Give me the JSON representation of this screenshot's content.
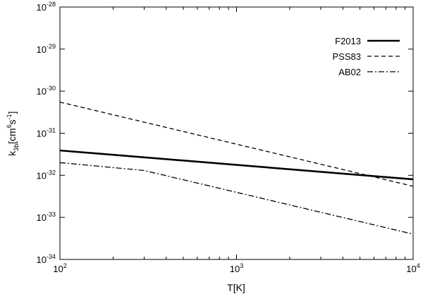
{
  "chart_data": {
    "type": "line",
    "xlabel": "T[K]",
    "ylabel_parts": {
      "base": "k",
      "sub": "3b",
      "open": "[cm",
      "sup1": "6",
      "mid": "s",
      "sup2": "-1",
      "close": "]"
    },
    "x_scale": "log",
    "y_scale": "log",
    "xlim": [
      100,
      10000
    ],
    "ylim": [
      1e-34,
      1e-28
    ],
    "x_ticks": [
      {
        "value": 100,
        "base": "10",
        "exp": "2"
      },
      {
        "value": 1000,
        "base": "10",
        "exp": "3"
      },
      {
        "value": 10000,
        "base": "10",
        "exp": "4"
      }
    ],
    "y_ticks": [
      {
        "value": 1e-34,
        "base": "10",
        "exp": "-34"
      },
      {
        "value": 1e-33,
        "base": "10",
        "exp": "-33"
      },
      {
        "value": 1e-32,
        "base": "10",
        "exp": "-32"
      },
      {
        "value": 1e-31,
        "base": "10",
        "exp": "-31"
      },
      {
        "value": 1e-30,
        "base": "10",
        "exp": "-30"
      },
      {
        "value": 1e-29,
        "base": "10",
        "exp": "-29"
      },
      {
        "value": 1e-28,
        "base": "10",
        "exp": "-28"
      }
    ],
    "grid": false,
    "legend_position": "top-right",
    "series": [
      {
        "name": "F2013",
        "style": "solid",
        "x": [
          100,
          10000
        ],
        "y": [
          3.9e-32,
          8e-33
        ]
      },
      {
        "name": "PSS83",
        "style": "dashed",
        "x": [
          100,
          10000
        ],
        "y": [
          5.5e-31,
          5.5e-33
        ]
      },
      {
        "name": "AB02",
        "style": "dashdot",
        "x": [
          100,
          300,
          10000
        ],
        "y": [
          2e-32,
          1.3e-32,
          4e-34
        ]
      }
    ]
  }
}
